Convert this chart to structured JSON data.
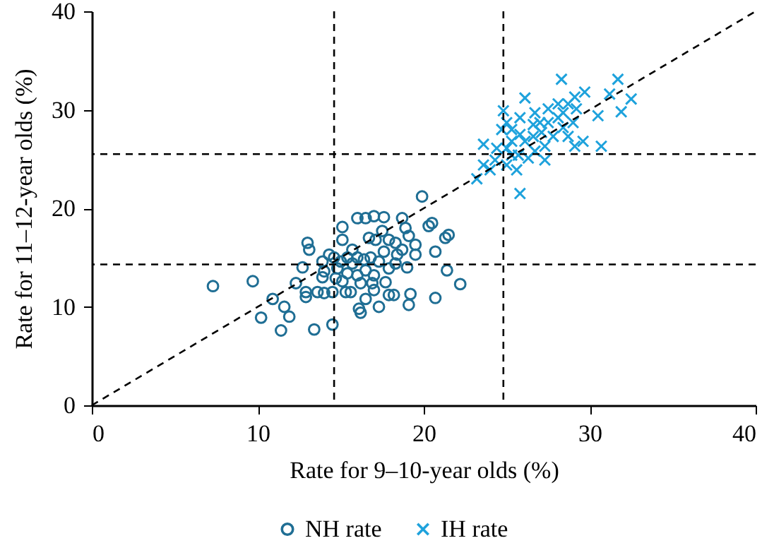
{
  "chart_data": {
    "type": "scatter",
    "xlabel": "Rate for 9–10-year olds (%)",
    "ylabel": "Rate for 11–12-year olds (%)",
    "xlim": [
      0,
      40
    ],
    "ylim": [
      0,
      40
    ],
    "xticks": [
      0,
      10,
      20,
      30,
      40
    ],
    "yticks": [
      0,
      10,
      20,
      30,
      40
    ],
    "grid": false,
    "legend": "bottom",
    "ref_lines": [
      {
        "axis": "x",
        "value": 14.6,
        "line_style": "dashed",
        "color": "#000000"
      },
      {
        "axis": "x",
        "value": 24.8,
        "line_style": "dashed",
        "color": "#000000"
      },
      {
        "axis": "y",
        "value": 14.3,
        "line_style": "dashed",
        "color": "#000000"
      },
      {
        "axis": "y",
        "value": 25.5,
        "line_style": "dashed",
        "color": "#000000"
      }
    ],
    "series": [
      {
        "type": "line",
        "color": "#000000",
        "line_style": "dashed",
        "marker": "none",
        "x": [
          0,
          40
        ],
        "values": [
          0,
          40
        ]
      },
      {
        "name": "NH rate",
        "marker": "circle",
        "color": "#1f6e94",
        "x": [
          7.3,
          9.7,
          10.9,
          10.2,
          11.4,
          11.6,
          11.9,
          12.3,
          12.7,
          12.9,
          12.9,
          13.0,
          13.1,
          13.4,
          13.6,
          14.0,
          13.9,
          13.9,
          14.5,
          14.5,
          14.3,
          14.8,
          15.1,
          15.1,
          15.3,
          15.6,
          15.7,
          16.0,
          16.1,
          16.2,
          16.5,
          17.0,
          17.6,
          16.5,
          17.0,
          17.3,
          16.7,
          17.1,
          17.5,
          17.7,
          17.9,
          18.2,
          17.9,
          18.3,
          18.7,
          18.9,
          19.1,
          18.7,
          19.0,
          19.2,
          19.1,
          19.5,
          19.5,
          19.9,
          20.3,
          20.5,
          20.7,
          20.7,
          21.3,
          21.5,
          21.4,
          22.2,
          14.6,
          15.0,
          15.4,
          15.7,
          16.0,
          16.4,
          16.8,
          17.3,
          15.4,
          16.0,
          16.5,
          17.0,
          17.9,
          18.3,
          18.4,
          14.7,
          15.1,
          16.2,
          16.9,
          14.0,
          17.6
        ],
        "values": [
          12.1,
          12.6,
          10.8,
          8.9,
          7.6,
          10.0,
          9.0,
          12.4,
          14.0,
          11.5,
          11.0,
          16.5,
          15.8,
          7.7,
          11.5,
          11.4,
          14.6,
          13.0,
          8.2,
          11.5,
          15.3,
          13.9,
          18.1,
          16.8,
          11.5,
          11.5,
          15.8,
          19.0,
          9.8,
          9.4,
          19.0,
          19.2,
          19.1,
          10.8,
          11.7,
          10.0,
          17.0,
          16.8,
          17.7,
          12.5,
          11.2,
          11.2,
          16.8,
          16.5,
          19.0,
          18.0,
          17.2,
          15.8,
          14.0,
          11.3,
          10.2,
          16.3,
          15.3,
          21.2,
          18.2,
          18.5,
          15.6,
          10.9,
          17.0,
          17.3,
          13.7,
          12.3,
          15.0,
          14.6,
          15.0,
          14.4,
          15.0,
          14.8,
          15.0,
          14.6,
          13.4,
          13.2,
          13.7,
          13.2,
          13.9,
          14.4,
          15.3,
          12.9,
          12.6,
          12.4,
          12.4,
          13.6,
          15.6
        ]
      },
      {
        "name": "IH rate",
        "marker": "cross",
        "color": "#1ea2dc",
        "x": [
          28.3,
          31.7,
          32.5,
          31.9,
          30.7,
          30.5,
          29.7,
          31.2,
          29.6,
          29.1,
          26.1,
          25.7,
          25.8,
          23.2,
          23.6,
          24.0,
          24.8,
          25.0,
          24.7,
          25.3,
          24.4,
          25.6,
          26.7,
          27.3,
          28.1,
          28.7,
          29.2,
          29.0,
          28.4,
          27.5,
          27.1,
          26.6,
          26.1,
          25.8,
          25.3,
          26.7,
          27.8,
          28.4,
          29.1,
          27.5,
          27.0,
          25.0,
          24.3,
          23.6,
          25.0,
          26.3,
          25.8,
          25.3,
          28.7,
          27.3,
          26.6,
          28.1
        ],
        "values": [
          33.1,
          33.1,
          31.1,
          29.8,
          26.3,
          29.4,
          31.8,
          31.6,
          26.8,
          26.3,
          31.2,
          25.4,
          21.5,
          23.0,
          26.5,
          23.9,
          29.9,
          28.7,
          28.0,
          26.8,
          26.1,
          23.9,
          29.7,
          26.3,
          30.6,
          30.6,
          30.1,
          28.7,
          28.2,
          28.7,
          27.7,
          27.3,
          26.8,
          27.5,
          25.4,
          25.8,
          27.3,
          29.7,
          31.3,
          30.1,
          28.7,
          26.1,
          24.9,
          24.4,
          24.4,
          25.1,
          29.2,
          28.0,
          27.3,
          24.9,
          28.5,
          29.2
        ]
      }
    ]
  }
}
